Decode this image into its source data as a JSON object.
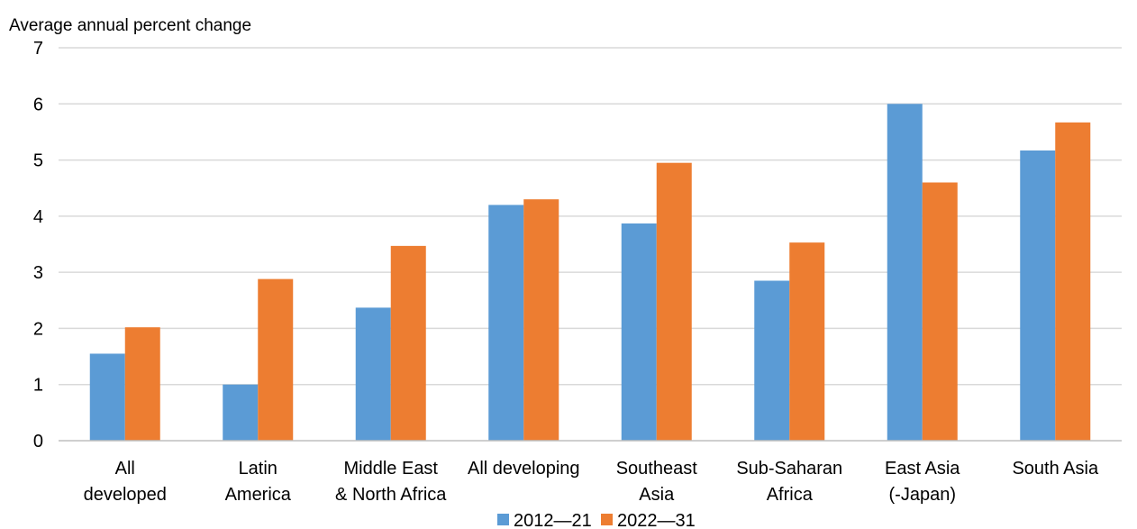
{
  "chart_data": {
    "type": "bar",
    "ylabel": "Average annual  percent change",
    "xlabel": "",
    "ylim": [
      0,
      7
    ],
    "yticks": [
      "0",
      "1",
      "2",
      "3",
      "4",
      "5",
      "6",
      "7"
    ],
    "grid": true,
    "legend_position": "bottom",
    "categories": [
      [
        "All",
        "developed"
      ],
      [
        "Latin",
        "America"
      ],
      [
        "Middle East",
        "& North Africa"
      ],
      [
        "All developing"
      ],
      [
        "Southeast",
        "Asia"
      ],
      [
        "Sub-Saharan",
        "Africa"
      ],
      [
        "East Asia",
        "(-Japan)"
      ],
      [
        "South Asia"
      ]
    ],
    "series": [
      {
        "name": "2012—21",
        "color": "#5B9BD5",
        "values": [
          1.55,
          1.0,
          2.37,
          4.2,
          3.87,
          2.85,
          6.0,
          5.17
        ]
      },
      {
        "name": "2022—31",
        "color": "#ED7D31",
        "values": [
          2.02,
          2.88,
          3.47,
          4.3,
          4.95,
          3.53,
          4.6,
          5.67
        ]
      }
    ],
    "colors": {
      "gridline": "#D9D9D9",
      "axis": "#BFBFBF"
    }
  }
}
